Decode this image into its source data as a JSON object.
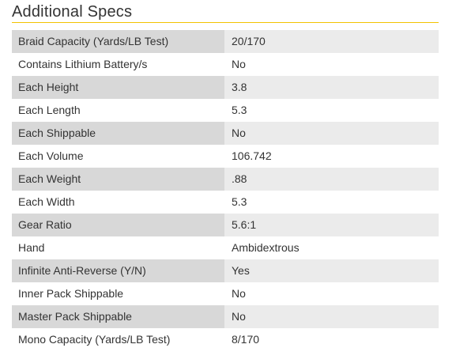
{
  "section": {
    "title": "Additional Specs"
  },
  "colors": {
    "accent_rule": "#f2c200",
    "row_shade_name": "#d8d8d8",
    "row_shade_value": "#ebebeb",
    "text": "#333333"
  },
  "specs": [
    {
      "name": "Braid Capacity (Yards/LB Test)",
      "value": "20/170"
    },
    {
      "name": "Contains Lithium Battery/s",
      "value": "No"
    },
    {
      "name": "Each Height",
      "value": "3.8"
    },
    {
      "name": "Each Length",
      "value": "5.3"
    },
    {
      "name": "Each Shippable",
      "value": "No"
    },
    {
      "name": "Each Volume",
      "value": "106.742"
    },
    {
      "name": "Each Weight",
      "value": ".88"
    },
    {
      "name": "Each Width",
      "value": "5.3"
    },
    {
      "name": "Gear Ratio",
      "value": "5.6:1"
    },
    {
      "name": "Hand",
      "value": "Ambidextrous"
    },
    {
      "name": "Infinite Anti-Reverse (Y/N)",
      "value": "Yes"
    },
    {
      "name": "Inner Pack Shippable",
      "value": "No"
    },
    {
      "name": "Master Pack Shippable",
      "value": "No"
    },
    {
      "name": "Mono Capacity (Yards/LB Test)",
      "value": "8/170"
    }
  ]
}
